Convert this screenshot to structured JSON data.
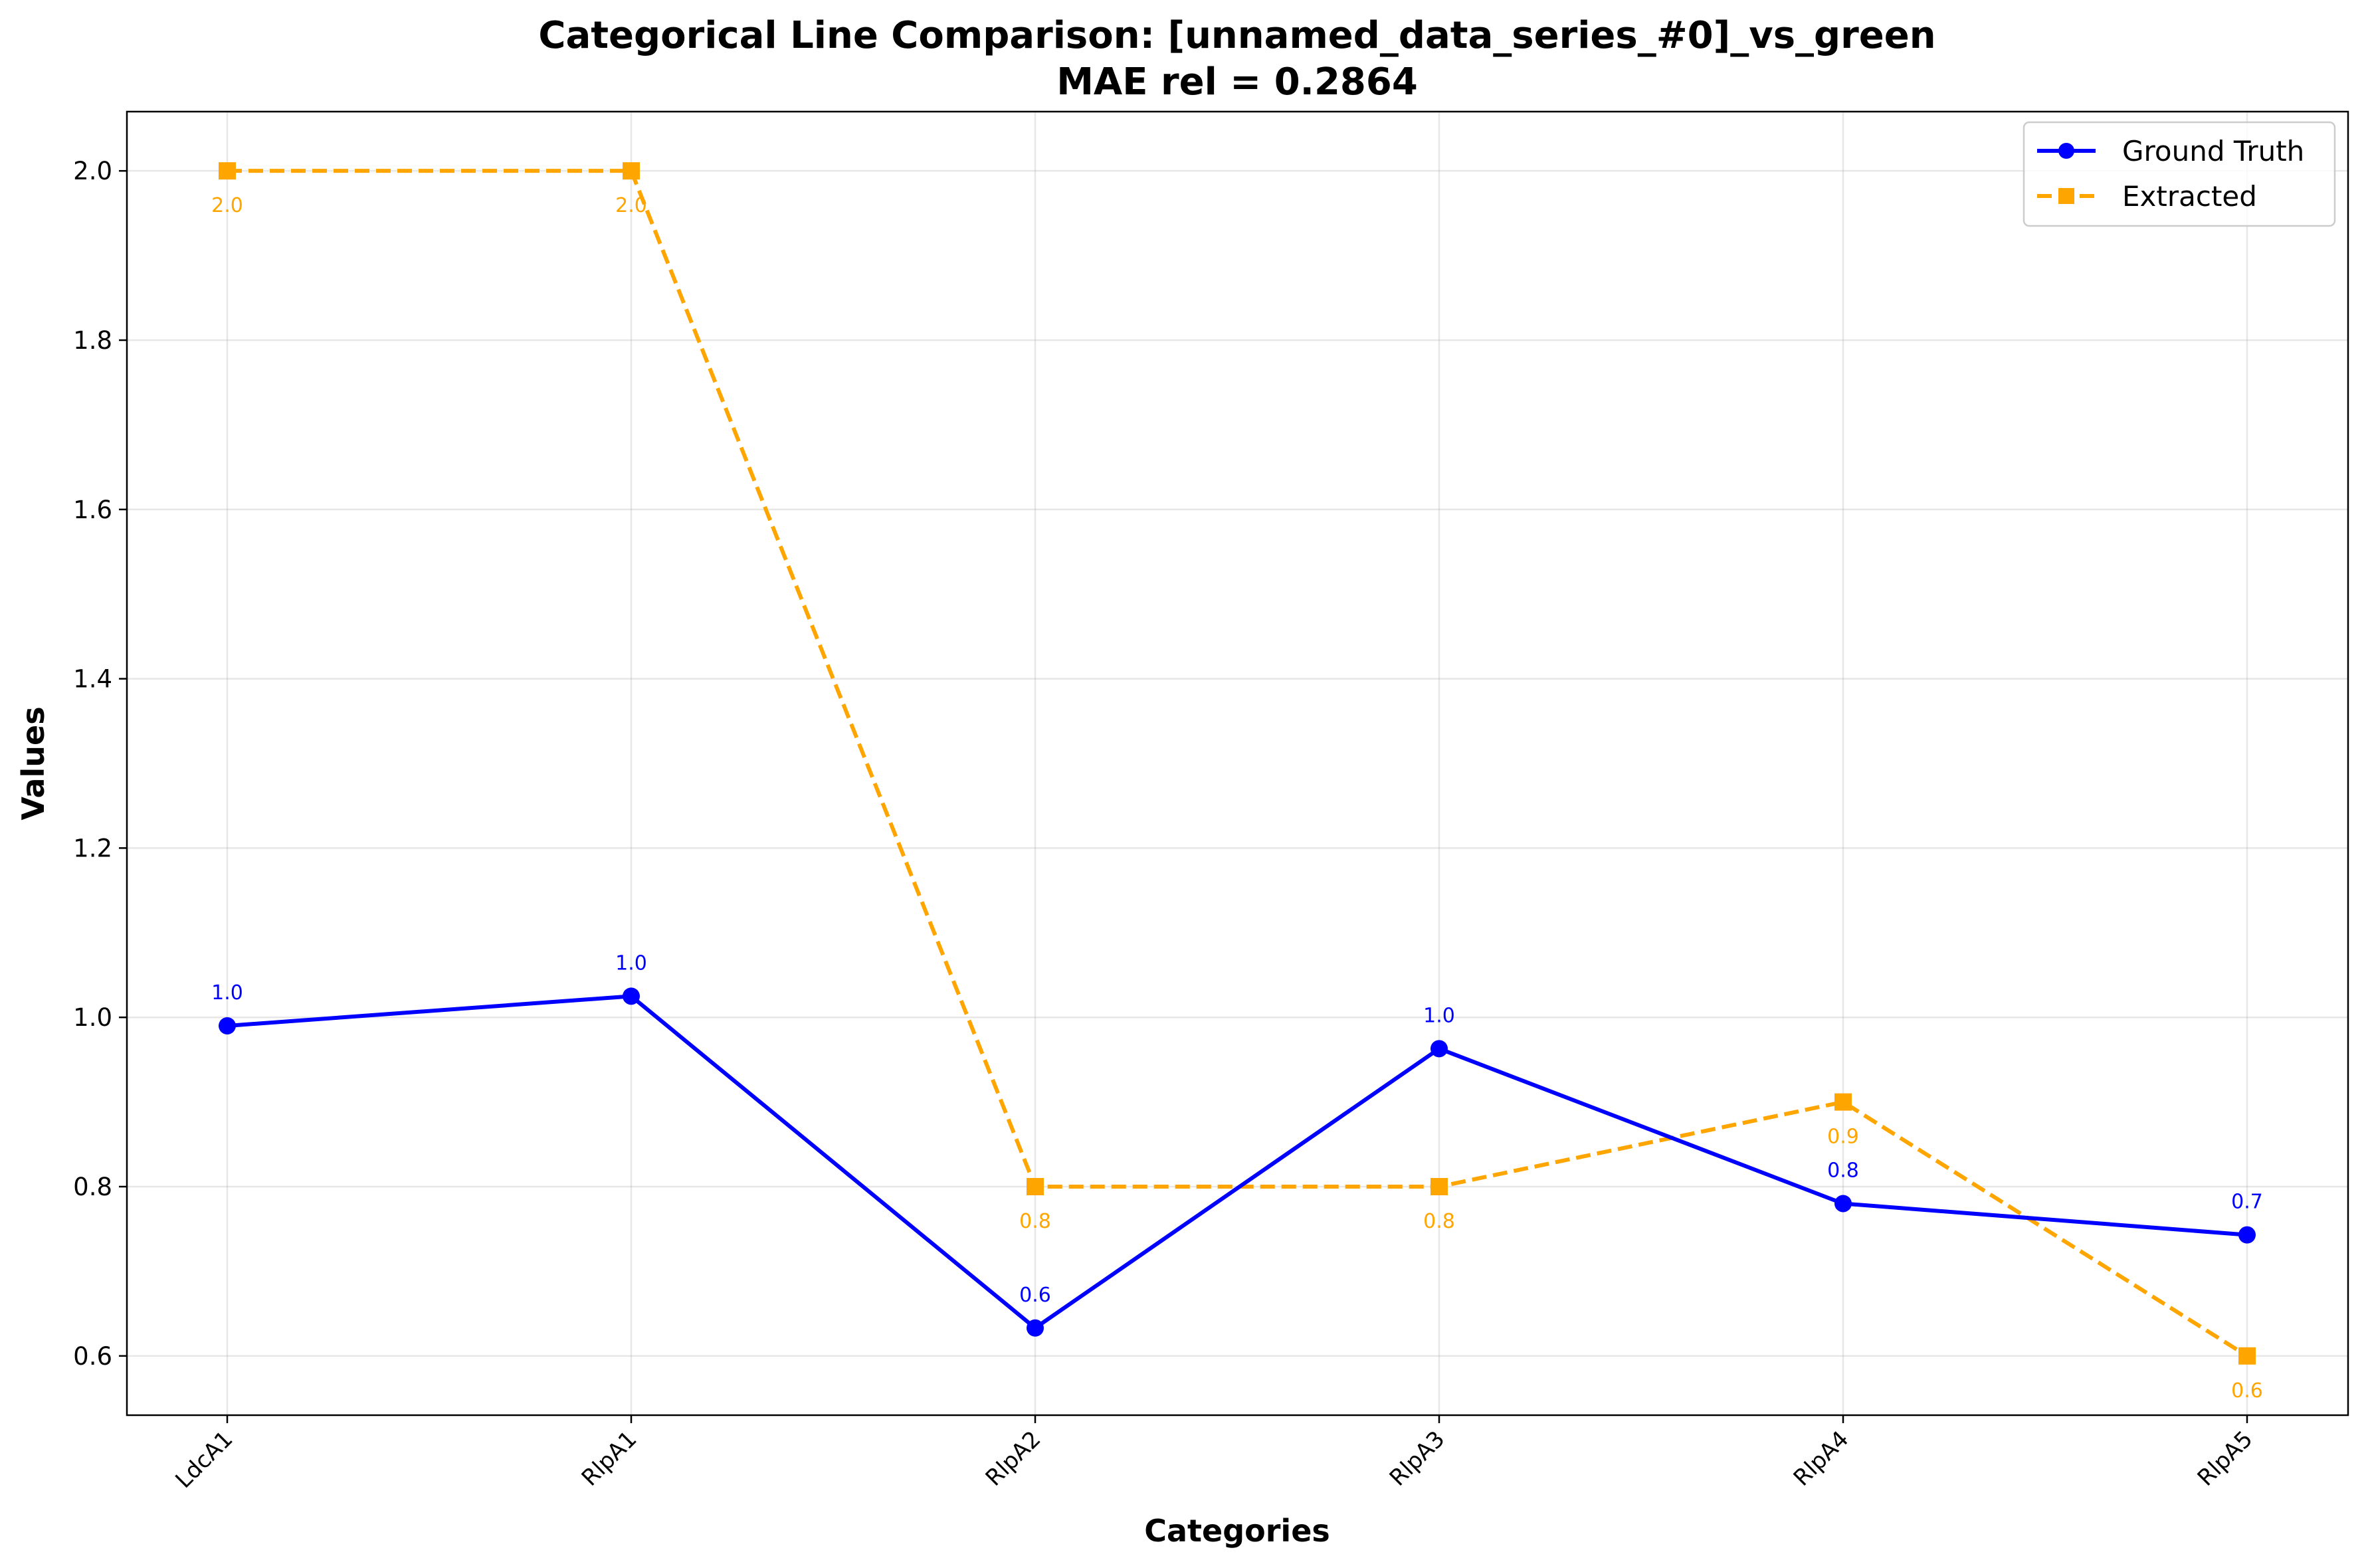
{
  "chart_data": {
    "type": "line",
    "title": "Categorical Line Comparison: [unnamed_data_series_#0]_vs_green",
    "subtitle": "MAE rel = 0.2864",
    "xlabel": "Categories",
    "ylabel": "Values",
    "categories": [
      "LdcA1",
      "RlpA1",
      "RlpA2",
      "RlpA3",
      "RlpA4",
      "RlpA5"
    ],
    "ylim": [
      0.53,
      2.07
    ],
    "yticks": [
      0.6,
      0.8,
      1.0,
      1.2,
      1.4,
      1.6,
      1.8,
      2.0
    ],
    "grid": true,
    "legend_position": "top-right",
    "series": [
      {
        "name": "Ground Truth",
        "values": [
          0.99,
          1.025,
          0.633,
          0.963,
          0.78,
          0.743
        ],
        "labels": [
          "1.0",
          "1.0",
          "0.6",
          "1.0",
          "0.8",
          "0.7"
        ],
        "color": "#0000ff",
        "line_style": "solid",
        "marker": "circle",
        "label_position": "above"
      },
      {
        "name": "Extracted",
        "values": [
          2.0,
          2.0,
          0.8,
          0.8,
          0.9,
          0.6
        ],
        "labels": [
          "2.0",
          "2.0",
          "0.8",
          "0.8",
          "0.9",
          "0.6"
        ],
        "color": "#ffa500",
        "line_style": "dashed",
        "marker": "square",
        "label_position": "below"
      }
    ]
  }
}
